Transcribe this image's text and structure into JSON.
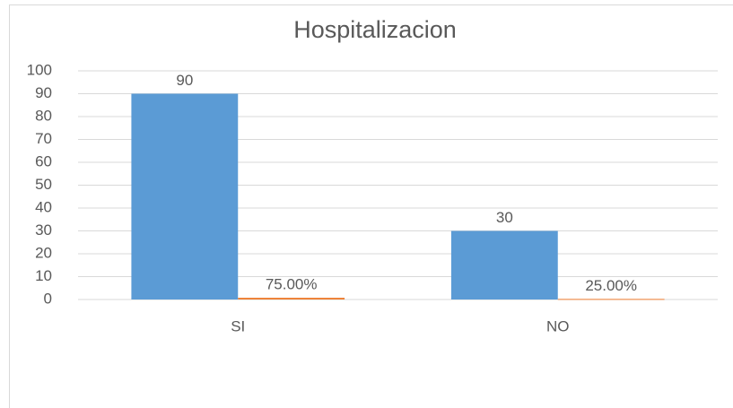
{
  "chart_data": {
    "type": "bar",
    "title": "Hospitalizacion",
    "categories": [
      "SI",
      "NO"
    ],
    "series": [
      {
        "color": "#5b9bd5",
        "values": [
          90,
          30
        ]
      },
      {
        "color": "#ed7d31",
        "values": [
          0.75,
          0.25
        ],
        "value_labels": [
          "75.00%",
          "25.00%"
        ]
      }
    ],
    "ylim": [
      0,
      100
    ],
    "yticks": [
      0,
      10,
      20,
      30,
      40,
      50,
      60,
      70,
      80,
      90,
      100
    ],
    "grid": true
  }
}
